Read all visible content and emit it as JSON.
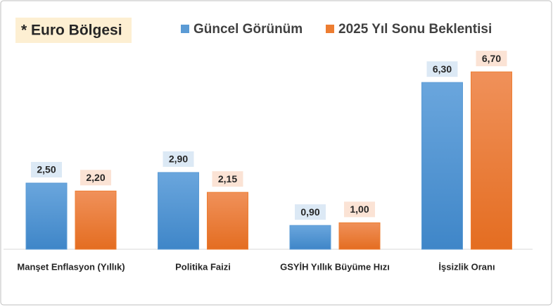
{
  "chart_data": {
    "type": "bar",
    "title": "* Euro Bölgesi",
    "categories": [
      "Manşet Enflasyon (Yıllık)",
      "Politika Faizi",
      "GSYİH Yıllık Büyüme Hızı",
      "İşsizlik Oranı"
    ],
    "series": [
      {
        "name": "Güncel Görünüm",
        "color": "#5b9bd5",
        "values": [
          2.5,
          2.9,
          0.9,
          6.3
        ],
        "value_labels": [
          "2,50",
          "2,90",
          "0,90",
          "6,30"
        ]
      },
      {
        "name": "2025 Yıl Sonu Beklentisi",
        "color": "#ed7d31",
        "values": [
          2.2,
          2.15,
          1.0,
          6.7
        ],
        "value_labels": [
          "2,20",
          "2,15",
          "1,00",
          "6,70"
        ]
      }
    ]
  }
}
